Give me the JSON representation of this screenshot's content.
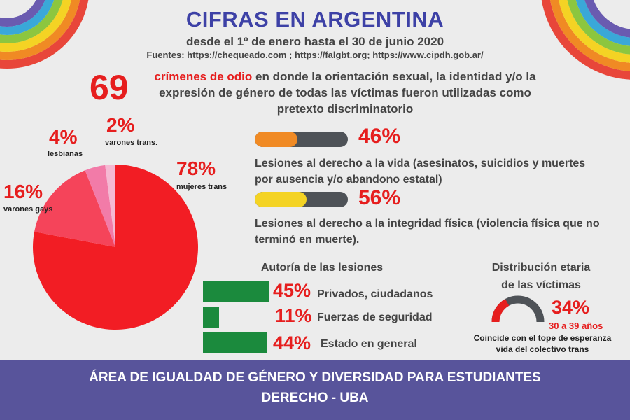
{
  "header": {
    "title": "CIFRAS EN ARGENTINA",
    "subtitle": "desde el 1º de enero hasta el 30 de junio 2020",
    "sources": "Fuentes: https://chequeado.com ; https://falgbt.org; https://www.cipdh.gob.ar/"
  },
  "crimes": {
    "count": "69",
    "highlight": "crímenes de odio",
    "text": " en donde la orientación sexual, la identidad y/o la expresión de género de todas las víctimas fueron utilizadas como pretexto discriminatorio"
  },
  "pie": {
    "labels": [
      {
        "pct": "78%",
        "name": "mujeres trans"
      },
      {
        "pct": "16%",
        "name": "varones gays"
      },
      {
        "pct": "4%",
        "name": "lesbianas"
      },
      {
        "pct": "2%",
        "name": "varones trans."
      }
    ]
  },
  "injuries": {
    "life": {
      "pct": "46%",
      "fraction": 0.46,
      "color": "#f08a24",
      "text": "Lesiones al derecho a la vida (asesinatos, suicidios y muertes por ausencia y/o abandono estatal)"
    },
    "physical": {
      "pct": "56%",
      "fraction": 0.56,
      "color": "#f4d324",
      "text": "Lesiones al derecho a la integridad física (violencia física que no terminó en muerte)."
    }
  },
  "authorship": {
    "title": "Autoría de las lesiones",
    "rows": [
      {
        "pct": "45%",
        "label": "Privados, ciudadanos",
        "value": 45
      },
      {
        "pct": "11%",
        "label": "Fuerzas de seguridad",
        "value": 11
      },
      {
        "pct": "44%",
        "label": "Estado en general",
        "value": 44
      }
    ]
  },
  "age": {
    "title_line1": "Distribución etaria",
    "title_line2": "de las víctimas",
    "pct": "34%",
    "fraction": 0.34,
    "range": "30 a 39 años",
    "note_line1": "Coincide  con el tope de esperanza",
    "note_line2": "vida del colectivo trans"
  },
  "footer": {
    "line1": "ÁREA DE IGUALDAD DE GÉNERO Y DIVERSIDAD PARA ESTUDIANTES",
    "line2": "DERECHO - UBA"
  },
  "chart_data": [
    {
      "type": "pie",
      "categories": [
        "mujeres trans",
        "varones gays",
        "lesbianas",
        "varones trans."
      ],
      "values": [
        78,
        16,
        4,
        2
      ],
      "colors": [
        "#f21d24",
        "#f5445a",
        "#f27ba8",
        "#f5b9d3"
      ]
    },
    {
      "type": "bar",
      "categories": [
        "Lesiones al derecho a la vida",
        "Lesiones al derecho a la integridad física"
      ],
      "values": [
        46,
        56
      ],
      "ylim": [
        0,
        100
      ]
    },
    {
      "type": "bar",
      "title": "Autoría de las lesiones",
      "categories": [
        "Privados, ciudadanos",
        "Fuerzas de seguridad",
        "Estado en general"
      ],
      "values": [
        45,
        11,
        44
      ]
    }
  ]
}
